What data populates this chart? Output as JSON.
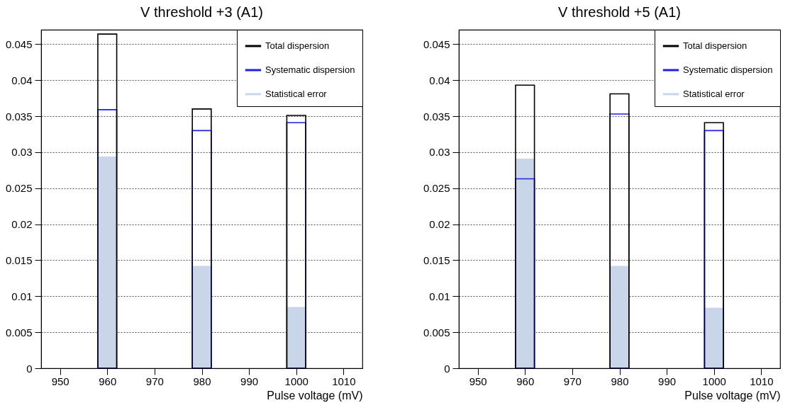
{
  "chart_data": [
    {
      "type": "bar",
      "title": "V threshold +3 (A1)",
      "xlabel": "Pulse voltage (mV)",
      "x": [
        960,
        980,
        1000
      ],
      "series": [
        {
          "name": "Statistical error",
          "color": "#c9d6ea",
          "values": [
            0.0294,
            0.0142,
            0.0085
          ]
        },
        {
          "name": "Systematic dispersion",
          "color": "#1f1fe6",
          "values": [
            0.0359,
            0.033,
            0.0341
          ]
        },
        {
          "name": "Total dispersion",
          "color": "#000000",
          "values": [
            0.0464,
            0.036,
            0.0351
          ]
        }
      ],
      "xlim": [
        946,
        1014
      ],
      "xticks": [
        950,
        960,
        970,
        980,
        990,
        1000,
        1010
      ],
      "ylim": [
        0,
        0.047
      ],
      "yticks": [
        0,
        0.005,
        0.01,
        0.015,
        0.02,
        0.025,
        0.03,
        0.035,
        0.04,
        0.045
      ],
      "grid": "y",
      "legend": "top right"
    },
    {
      "type": "bar",
      "title": "V threshold +5 (A1)",
      "xlabel": "Pulse voltage (mV)",
      "x": [
        960,
        980,
        1000
      ],
      "series": [
        {
          "name": "Statistical error",
          "color": "#c9d6ea",
          "values": [
            0.0291,
            0.0142,
            0.0084
          ]
        },
        {
          "name": "Systematic dispersion",
          "color": "#1f1fe6",
          "values": [
            0.0263,
            0.0353,
            0.033
          ]
        },
        {
          "name": "Total dispersion",
          "color": "#000000",
          "values": [
            0.0393,
            0.0381,
            0.0341
          ]
        }
      ],
      "xlim": [
        946,
        1014
      ],
      "xticks": [
        950,
        960,
        970,
        980,
        990,
        1000,
        1010
      ],
      "ylim": [
        0,
        0.047
      ],
      "yticks": [
        0,
        0.005,
        0.01,
        0.015,
        0.02,
        0.025,
        0.03,
        0.035,
        0.04,
        0.045
      ],
      "grid": "y",
      "legend": "top right"
    }
  ]
}
